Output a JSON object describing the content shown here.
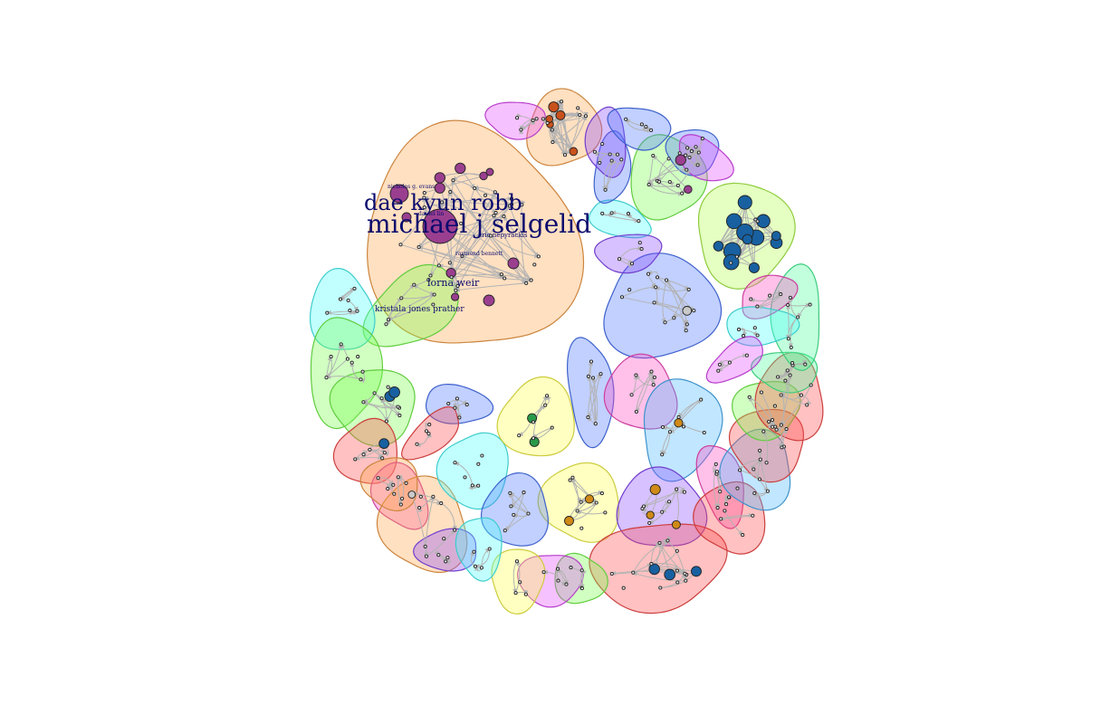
{
  "figure": {
    "type": "community network graph",
    "background": "#ffffff",
    "edge_color": "#b3b3b3"
  },
  "labels": {
    "michael": "michael j selgelid",
    "dae": "dae kyun robb",
    "lorna": "lorna weir",
    "kristala": "kristala jones prather",
    "eric": "eric nepyrackis",
    "raymond": "raymond bennett",
    "small1": "nicholas g. evans",
    "small2": "daniel lin"
  },
  "palette": [
    "#ffa64d",
    "#4d79ff",
    "#b3ff4d",
    "#ff4dc4",
    "#4dffff",
    "#ff4d4d",
    "#ffff4d",
    "#8c4dff",
    "#4dff9e",
    "#e64dff",
    "#79ff4d",
    "#4db8ff"
  ],
  "node_colors": {
    "purple": "#9a3f8f",
    "orange": "#c8521c",
    "blue": "#1860a0",
    "green": "#2a9a4a",
    "gold": "#d08a18",
    "small": "#c9c9c9"
  }
}
